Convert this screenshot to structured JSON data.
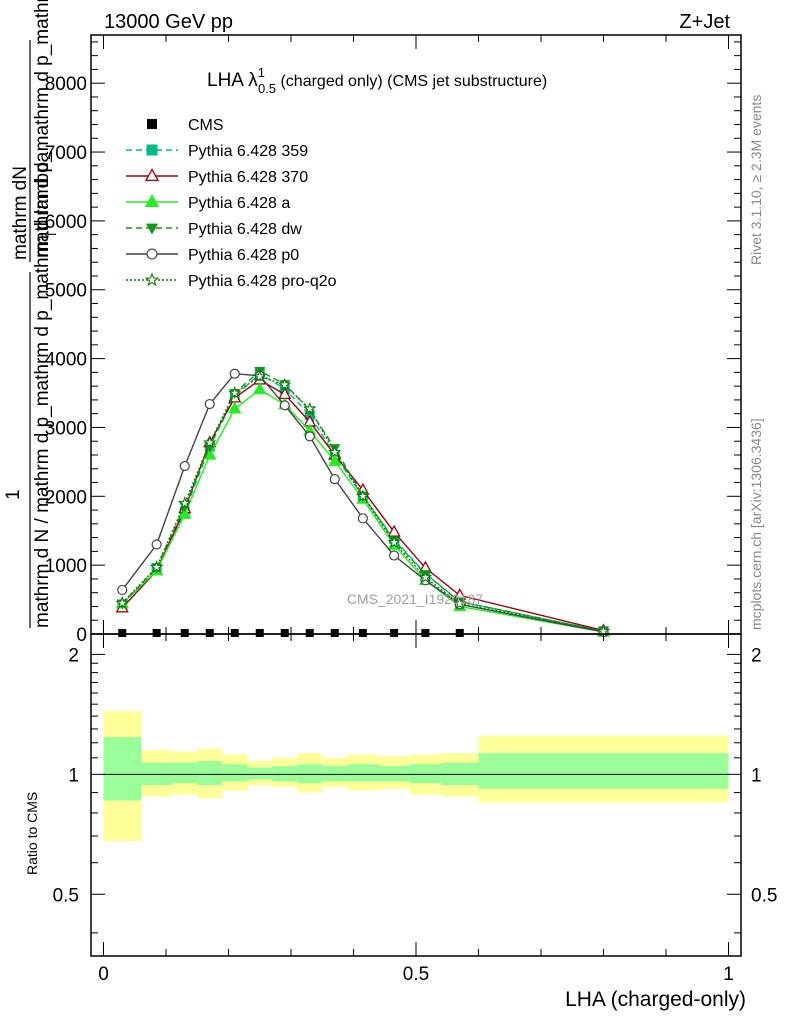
{
  "header": {
    "left": "13000 GeV pp",
    "right": "Z+Jet"
  },
  "side_labels": {
    "rivet": "Rivet 3.1.10, ≥ 2.3M events",
    "mcplots": "mcplots.cern.ch [arXiv:1306.3436]"
  },
  "watermark": "CMS_2021_I1920187",
  "chart_data": [
    {
      "type": "line",
      "title": {
        "main": "LHA λ",
        "sup": "1",
        "sub": "0.5",
        "rest": " (charged only) (CMS jet substructure)"
      },
      "ylabel": {
        "top": "mathrm dN",
        "bottom": "mathrm d p_mathrm d p_mathrm d lambda",
        "sub": "T",
        "one": "1",
        "den": "mathrm d N / mathrm d p_mathrm d p_mathrm d lambda"
      },
      "ylim": [
        0,
        8700
      ],
      "xlim": [
        -0.02,
        1.02
      ],
      "yticks": [
        0,
        1000,
        2000,
        3000,
        4000,
        5000,
        6000,
        7000,
        8000
      ],
      "ytick_labels": [
        "0",
        "1000",
        "2000",
        "3000",
        "4000",
        "5000",
        "6000",
        "7000",
        "8000"
      ],
      "x": [
        0.03,
        0.085,
        0.13,
        0.17,
        0.21,
        0.25,
        0.29,
        0.33,
        0.37,
        0.415,
        0.465,
        0.515,
        0.57,
        0.8
      ],
      "series": [
        {
          "name": "CMS",
          "color": "#000000",
          "marker": "square",
          "values": [
            0,
            0,
            0,
            0,
            0,
            0,
            0,
            0,
            0,
            0,
            0,
            0,
            0,
            null
          ]
        },
        {
          "name": "Pythia 6.428 359",
          "color": "#00bb88",
          "dash": "dashed",
          "marker": "square",
          "values": [
            430,
            960,
            1780,
            2720,
            3450,
            3780,
            3560,
            3180,
            2600,
            2000,
            1380,
            880,
            470,
            40
          ]
        },
        {
          "name": "Pythia 6.428 370",
          "color": "#990011",
          "dash": "solid",
          "marker": "triangle-open",
          "values": [
            380,
            920,
            1820,
            2780,
            3430,
            3690,
            3480,
            3080,
            2600,
            2090,
            1480,
            960,
            560,
            50
          ]
        },
        {
          "name": "Pythia 6.428 a",
          "color": "#22ee22",
          "dash": "solid",
          "marker": "triangle",
          "values": [
            440,
            920,
            1740,
            2600,
            3270,
            3550,
            3330,
            2950,
            2510,
            1960,
            1290,
            780,
            400,
            30
          ]
        },
        {
          "name": "Pythia 6.428 dw",
          "color": "#119911",
          "dash": "dashed",
          "marker": "triangle-down",
          "values": [
            440,
            960,
            1860,
            2720,
            3500,
            3820,
            3630,
            3250,
            2700,
            2010,
            1360,
            870,
            470,
            40
          ]
        },
        {
          "name": "Pythia 6.428 p0",
          "color": "#444444",
          "dash": "solid",
          "marker": "circle-open",
          "values": [
            640,
            1300,
            2440,
            3340,
            3780,
            3750,
            3320,
            2870,
            2250,
            1680,
            1140,
            780,
            430,
            30
          ]
        },
        {
          "name": "Pythia 6.428 pro-q2o",
          "color": "#117711",
          "dash": "dotted",
          "marker": "star",
          "values": [
            450,
            970,
            1900,
            2780,
            3500,
            3740,
            3620,
            3270,
            2640,
            2000,
            1330,
            820,
            440,
            40
          ]
        }
      ]
    },
    {
      "type": "area",
      "ylabel": "Ratio to CMS",
      "xlabel": "LHA (charged-only)",
      "ylim": [
        0.35,
        2.25
      ],
      "yticks": [
        0.5,
        1,
        2
      ],
      "ytick_labels": [
        "0.5",
        "1",
        "2"
      ],
      "xticks": [
        0,
        0.5,
        1
      ],
      "xtick_labels": [
        "0",
        "0.5",
        "1"
      ],
      "bins": [
        0,
        0.06,
        0.11,
        0.15,
        0.19,
        0.23,
        0.27,
        0.31,
        0.35,
        0.39,
        0.44,
        0.49,
        0.54,
        0.6,
        1.0
      ],
      "band_outer_lo": [
        0.68,
        0.88,
        0.89,
        0.87,
        0.91,
        0.94,
        0.93,
        0.9,
        0.93,
        0.91,
        0.92,
        0.89,
        0.88,
        0.85
      ],
      "band_outer_hi": [
        1.44,
        1.15,
        1.14,
        1.16,
        1.12,
        1.08,
        1.1,
        1.13,
        1.1,
        1.12,
        1.11,
        1.12,
        1.13,
        1.25
      ],
      "band_inner_lo": [
        0.86,
        0.94,
        0.95,
        0.94,
        0.96,
        0.97,
        0.96,
        0.95,
        0.96,
        0.96,
        0.96,
        0.95,
        0.94,
        0.92
      ],
      "band_inner_hi": [
        1.24,
        1.07,
        1.07,
        1.08,
        1.06,
        1.04,
        1.05,
        1.06,
        1.05,
        1.06,
        1.05,
        1.06,
        1.07,
        1.13
      ],
      "colors": {
        "outer": "#ffff99",
        "inner": "#99ff99",
        "line": "#000000"
      }
    }
  ]
}
